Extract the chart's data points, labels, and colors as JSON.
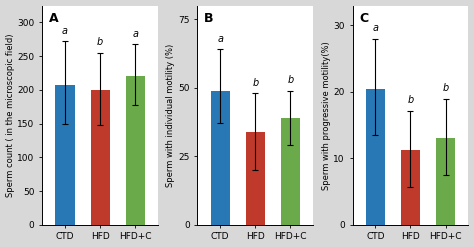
{
  "panels": [
    {
      "label": "A",
      "ylabel": "Sperm count ( in the microscopic field)",
      "ylim": [
        0,
        325
      ],
      "yticks": [
        0,
        50,
        100,
        150,
        200,
        250,
        300
      ],
      "categories": [
        "CTD",
        "HFD",
        "HFD+C"
      ],
      "values": [
        207,
        200,
        220
      ],
      "errors_up": [
        65,
        55,
        48
      ],
      "errors_down": [
        58,
        52,
        42
      ],
      "sig_labels": [
        "a",
        "b",
        "a"
      ],
      "bar_colors": [
        "#2878b5",
        "#c03a2b",
        "#6aaa4a"
      ]
    },
    {
      "label": "B",
      "ylabel": "Sperm with individual motility (%)",
      "ylim": [
        0,
        80
      ],
      "yticks": [
        0,
        25,
        50,
        75
      ],
      "categories": [
        "CTD",
        "HFD",
        "HFD+C"
      ],
      "values": [
        49,
        34,
        39
      ],
      "errors_up": [
        15,
        14,
        10
      ],
      "errors_down": [
        12,
        14,
        10
      ],
      "sig_labels": [
        "a",
        "b",
        "b"
      ],
      "bar_colors": [
        "#2878b5",
        "#c03a2b",
        "#6aaa4a"
      ]
    },
    {
      "label": "C",
      "ylabel": "Sperm with progressive motility(%)",
      "ylim": [
        0,
        33
      ],
      "yticks": [
        0,
        10,
        20,
        30
      ],
      "categories": [
        "CTD",
        "HFD",
        "HFD+C"
      ],
      "values": [
        20.5,
        11.2,
        13.0
      ],
      "errors_up": [
        7.5,
        6.0,
        6.0
      ],
      "errors_down": [
        7.0,
        5.5,
        5.5
      ],
      "sig_labels": [
        "a",
        "b",
        "b"
      ],
      "bar_colors": [
        "#2878b5",
        "#c03a2b",
        "#6aaa4a"
      ]
    }
  ],
  "fig_width": 4.74,
  "fig_height": 2.47,
  "dpi": 100,
  "fig_facecolor": "#d8d8d8",
  "ax_facecolor": "#ffffff",
  "bar_width": 0.55,
  "fontsize_label": 6.0,
  "fontsize_tick": 6.5,
  "fontsize_panel": 9,
  "fontsize_sig": 7
}
